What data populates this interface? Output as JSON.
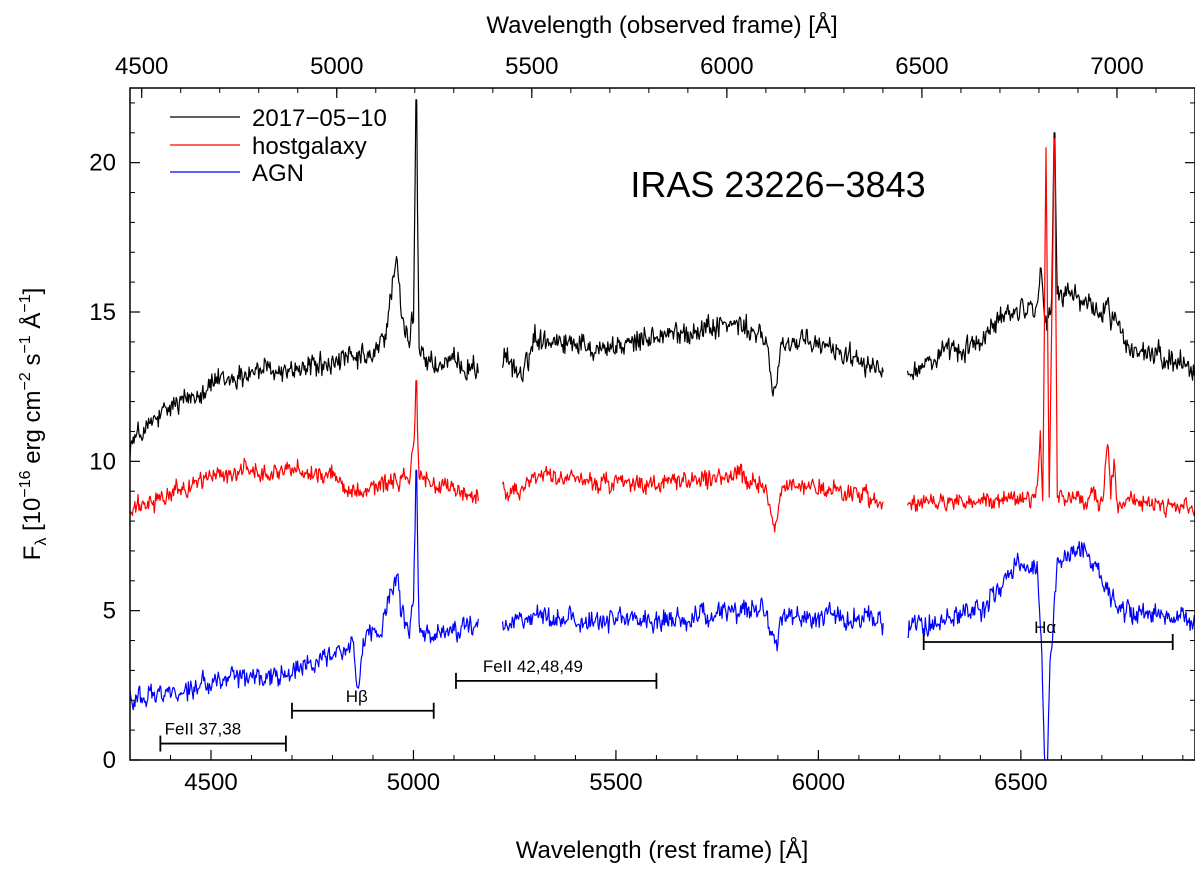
{
  "chart_data": {
    "type": "line",
    "title": "IRAS 23226−3843",
    "xlabel": "Wavelength (rest frame) [Å]",
    "x2label": "Wavelength (observed frame) [Å]",
    "ylabel": {
      "prefix": "F",
      "sub": "λ",
      "mid1": " [10",
      "sup1": "−16",
      "mid2": " erg cm",
      "sup2": "−2",
      "mid3": " s",
      "sup3": "−1",
      "mid4": " Å",
      "sup4": "−1",
      "end": "]"
    },
    "xlim": [
      4300,
      6930
    ],
    "ylim": [
      0,
      22.5
    ],
    "x2lim": [
      4470,
      7200
    ],
    "xticks": [
      "4500",
      "5000",
      "5500",
      "6000",
      "6500"
    ],
    "yticks": [
      "0",
      "5",
      "10",
      "15",
      "20"
    ],
    "x2ticks": [
      "4500",
      "5000",
      "5500",
      "6000",
      "6500",
      "7000"
    ],
    "legend_position": "top-left",
    "gaps": [
      [
        5160,
        5220
      ],
      [
        6160,
        6220
      ]
    ],
    "series": [
      {
        "name": "2017−05−10",
        "color": "#000000",
        "noise": 0.45,
        "points": [
          [
            4300,
            10.6
          ],
          [
            4400,
            11.8
          ],
          [
            4500,
            12.6
          ],
          [
            4600,
            13.0
          ],
          [
            4700,
            13.1
          ],
          [
            4800,
            13.3
          ],
          [
            4900,
            13.5
          ],
          [
            4930,
            14.2
          ],
          [
            4945,
            15.6
          ],
          [
            4959,
            17.0
          ],
          [
            4970,
            14.7
          ],
          [
            4990,
            13.9
          ],
          [
            5000,
            15.0
          ],
          [
            5007,
            22.1
          ],
          [
            5014,
            13.8
          ],
          [
            5050,
            13.2
          ],
          [
            5160,
            13.2
          ],
          [
            5220,
            13.4
          ],
          [
            5270,
            12.9
          ],
          [
            5300,
            14.2
          ],
          [
            5400,
            14.0
          ],
          [
            5500,
            13.8
          ],
          [
            5600,
            14.2
          ],
          [
            5700,
            14.4
          ],
          [
            5800,
            14.6
          ],
          [
            5870,
            14.0
          ],
          [
            5893,
            12.2
          ],
          [
            5910,
            14.0
          ],
          [
            6000,
            13.9
          ],
          [
            6100,
            13.5
          ],
          [
            6160,
            13.0
          ],
          [
            6220,
            13.0
          ],
          [
            6300,
            13.5
          ],
          [
            6400,
            14.0
          ],
          [
            6450,
            14.8
          ],
          [
            6520,
            15.2
          ],
          [
            6540,
            15.3
          ],
          [
            6548,
            16.6
          ],
          [
            6556,
            15.1
          ],
          [
            6562,
            14.7
          ],
          [
            6568,
            15.0
          ],
          [
            6575,
            14.8
          ],
          [
            6583,
            21.0
          ],
          [
            6590,
            15.5
          ],
          [
            6640,
            15.6
          ],
          [
            6670,
            15.2
          ],
          [
            6700,
            14.8
          ],
          [
            6716,
            15.3
          ],
          [
            6722,
            14.6
          ],
          [
            6731,
            15.0
          ],
          [
            6760,
            13.8
          ],
          [
            6800,
            13.6
          ],
          [
            6900,
            13.3
          ],
          [
            6930,
            13.1
          ]
        ]
      },
      {
        "name": "hostgalaxy",
        "color": "#ff0000",
        "noise": 0.35,
        "points": [
          [
            4300,
            8.3
          ],
          [
            4400,
            8.9
          ],
          [
            4500,
            9.5
          ],
          [
            4600,
            9.7
          ],
          [
            4700,
            9.7
          ],
          [
            4800,
            9.5
          ],
          [
            4850,
            9.0
          ],
          [
            4900,
            9.2
          ],
          [
            4990,
            9.4
          ],
          [
            5000,
            10.2
          ],
          [
            5007,
            12.7
          ],
          [
            5014,
            9.5
          ],
          [
            5050,
            9.2
          ],
          [
            5160,
            8.8
          ],
          [
            5220,
            9.0
          ],
          [
            5270,
            9.1
          ],
          [
            5300,
            9.5
          ],
          [
            5400,
            9.4
          ],
          [
            5500,
            9.2
          ],
          [
            5600,
            9.2
          ],
          [
            5700,
            9.4
          ],
          [
            5800,
            9.5
          ],
          [
            5870,
            9.1
          ],
          [
            5893,
            7.8
          ],
          [
            5910,
            9.2
          ],
          [
            6000,
            9.1
          ],
          [
            6100,
            8.9
          ],
          [
            6160,
            8.6
          ],
          [
            6220,
            8.5
          ],
          [
            6300,
            8.6
          ],
          [
            6400,
            8.7
          ],
          [
            6500,
            8.7
          ],
          [
            6540,
            8.8
          ],
          [
            6548,
            11.0
          ],
          [
            6554,
            8.8
          ],
          [
            6562,
            20.5
          ],
          [
            6570,
            8.8
          ],
          [
            6583,
            20.8
          ],
          [
            6590,
            8.8
          ],
          [
            6700,
            8.7
          ],
          [
            6716,
            10.6
          ],
          [
            6722,
            8.8
          ],
          [
            6731,
            10.2
          ],
          [
            6738,
            8.7
          ],
          [
            6800,
            8.6
          ],
          [
            6930,
            8.4
          ]
        ]
      },
      {
        "name": "AGN",
        "color": "#0000ff",
        "noise": 0.4,
        "points": [
          [
            4300,
            2.1
          ],
          [
            4400,
            2.3
          ],
          [
            4500,
            2.6
          ],
          [
            4600,
            2.8
          ],
          [
            4700,
            2.9
          ],
          [
            4800,
            3.6
          ],
          [
            4850,
            3.9
          ],
          [
            4861,
            2.1
          ],
          [
            4875,
            3.9
          ],
          [
            4920,
            4.4
          ],
          [
            4945,
            5.5
          ],
          [
            4959,
            6.2
          ],
          [
            4970,
            4.8
          ],
          [
            4990,
            4.3
          ],
          [
            5000,
            5.4
          ],
          [
            5007,
            9.7
          ],
          [
            5014,
            4.3
          ],
          [
            5050,
            4.1
          ],
          [
            5160,
            4.6
          ],
          [
            5220,
            4.5
          ],
          [
            5300,
            4.8
          ],
          [
            5400,
            4.7
          ],
          [
            5500,
            4.7
          ],
          [
            5600,
            4.7
          ],
          [
            5700,
            4.8
          ],
          [
            5800,
            5.0
          ],
          [
            5860,
            5.0
          ],
          [
            5880,
            4.5
          ],
          [
            5893,
            3.8
          ],
          [
            5910,
            4.8
          ],
          [
            6000,
            4.8
          ],
          [
            6100,
            4.8
          ],
          [
            6160,
            4.6
          ],
          [
            6220,
            4.5
          ],
          [
            6300,
            4.6
          ],
          [
            6400,
            5.0
          ],
          [
            6450,
            5.8
          ],
          [
            6480,
            6.5
          ],
          [
            6520,
            6.6
          ],
          [
            6540,
            6.5
          ],
          [
            6552,
            3.5
          ],
          [
            6558,
            0.2
          ],
          [
            6562,
            0.0
          ],
          [
            6566,
            0.2
          ],
          [
            6572,
            3.3
          ],
          [
            6590,
            6.5
          ],
          [
            6620,
            6.9
          ],
          [
            6650,
            7.2
          ],
          [
            6680,
            6.5
          ],
          [
            6700,
            5.9
          ],
          [
            6720,
            5.5
          ],
          [
            6760,
            4.9
          ],
          [
            6850,
            4.8
          ],
          [
            6930,
            4.6
          ]
        ]
      }
    ],
    "annotations": [
      {
        "label": "FeII 37,38",
        "x1": 4375,
        "x2": 4685,
        "y": 0.55,
        "text_x": 4480,
        "text_y": 0.85
      },
      {
        "label": "Hβ",
        "x1": 4700,
        "x2": 5050,
        "y": 1.65,
        "text_x": 4860,
        "text_y": 1.95
      },
      {
        "label": "FeII 42,48,49",
        "x1": 5105,
        "x2": 5600,
        "y": 2.65,
        "text_x": 5295,
        "text_y": 2.95
      },
      {
        "label": "Hα",
        "x1": 6260,
        "x2": 6875,
        "y": 3.95,
        "text_x": 6560,
        "text_y": 4.25
      }
    ]
  }
}
